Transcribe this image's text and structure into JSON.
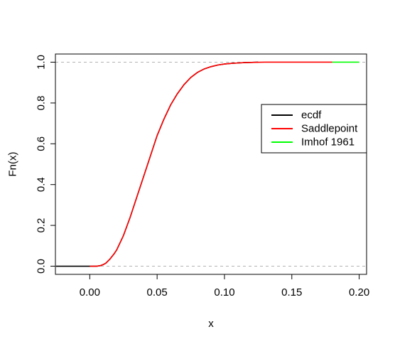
{
  "chart_data": {
    "type": "line",
    "title": "",
    "xlabel": "x",
    "ylabel": "Fn(x)",
    "xlim": [
      -0.02,
      0.2
    ],
    "ylim": [
      0,
      1
    ],
    "x_ticks": [
      0.0,
      0.05,
      0.1,
      0.15,
      0.2
    ],
    "x_tick_labels": [
      "0.00",
      "0.05",
      "0.10",
      "0.15",
      "0.20"
    ],
    "y_ticks": [
      0.0,
      0.2,
      0.4,
      0.6,
      0.8,
      1.0
    ],
    "y_tick_labels": [
      "0.0",
      "0.2",
      "0.4",
      "0.6",
      "0.8",
      "1.0"
    ],
    "reference_lines": [
      0,
      1
    ],
    "grid": false,
    "legend_position": "right",
    "series": [
      {
        "name": "ecdf",
        "color": "#000000",
        "x": [
          -0.025,
          0.0,
          0.005,
          0.008,
          0.01,
          0.012,
          0.015,
          0.018,
          0.02,
          0.025,
          0.03,
          0.035,
          0.04,
          0.045,
          0.05,
          0.055,
          0.06,
          0.065,
          0.07,
          0.075,
          0.08,
          0.085,
          0.09,
          0.095,
          0.1,
          0.105,
          0.11,
          0.115,
          0.12,
          0.125
        ],
        "y": [
          0.0,
          0.0,
          0.0,
          0.003,
          0.008,
          0.015,
          0.035,
          0.06,
          0.08,
          0.15,
          0.24,
          0.34,
          0.44,
          0.54,
          0.64,
          0.72,
          0.79,
          0.845,
          0.89,
          0.925,
          0.95,
          0.967,
          0.978,
          0.986,
          0.991,
          0.994,
          0.996,
          0.998,
          0.999,
          1.0
        ]
      },
      {
        "name": "Saddlepoint",
        "color": "#ff0000",
        "x": [
          0.0,
          0.005,
          0.008,
          0.01,
          0.012,
          0.015,
          0.018,
          0.02,
          0.025,
          0.03,
          0.035,
          0.04,
          0.045,
          0.05,
          0.055,
          0.06,
          0.065,
          0.07,
          0.075,
          0.08,
          0.085,
          0.09,
          0.095,
          0.1,
          0.105,
          0.11,
          0.115,
          0.12,
          0.13,
          0.15,
          0.18
        ],
        "y": [
          0.0,
          0.0,
          0.003,
          0.008,
          0.015,
          0.035,
          0.06,
          0.08,
          0.15,
          0.24,
          0.34,
          0.44,
          0.54,
          0.64,
          0.72,
          0.79,
          0.845,
          0.89,
          0.925,
          0.95,
          0.967,
          0.978,
          0.986,
          0.991,
          0.994,
          0.996,
          0.998,
          0.999,
          1.0,
          1.0,
          1.0
        ]
      },
      {
        "name": "Imhof 1961",
        "color": "#00ff00",
        "x": [
          0.18,
          0.2
        ],
        "y": [
          1.0,
          1.0
        ]
      }
    ]
  }
}
